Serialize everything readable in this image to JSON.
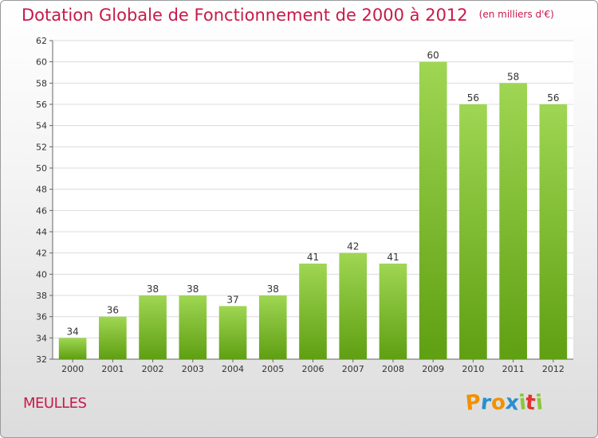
{
  "title": "Dotation Globale de Fonctionnement de 2000 à 2012",
  "unit_note": "(en milliers d'€)",
  "commune": "MEULLES",
  "brand": {
    "letters": [
      "P",
      "r",
      "o",
      "x",
      "i",
      "t",
      "i"
    ],
    "colors": [
      "#f29100",
      "#2a8fd0",
      "#f29100",
      "#2a8fd0",
      "#8cc63f",
      "#e5322d",
      "#8cc63f"
    ]
  },
  "colors": {
    "bar_top": "#9fd653",
    "bar_bottom": "#5f9f12",
    "title": "#c8194b"
  },
  "chart_data": {
    "type": "bar",
    "title": "Dotation Globale de Fonctionnement de 2000 à 2012",
    "subtitle": "(en milliers d'€)",
    "xlabel": "",
    "ylabel": "",
    "categories": [
      "2000",
      "2001",
      "2002",
      "2003",
      "2004",
      "2005",
      "2006",
      "2007",
      "2008",
      "2009",
      "2010",
      "2011",
      "2012"
    ],
    "values": [
      34,
      36,
      38,
      38,
      37,
      38,
      41,
      42,
      41,
      60,
      56,
      58,
      56
    ],
    "ylim": [
      32,
      62
    ],
    "yticks": [
      32,
      34,
      36,
      38,
      40,
      42,
      44,
      46,
      48,
      50,
      52,
      54,
      56,
      58,
      60,
      62
    ],
    "grid": true,
    "legend": "none"
  }
}
